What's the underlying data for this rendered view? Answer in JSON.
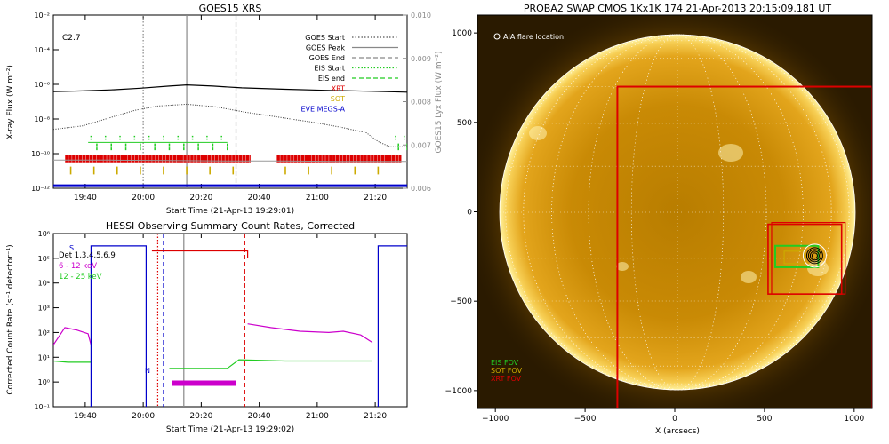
{
  "chart_data": [
    {
      "type": "line",
      "title": "GOES15 XRS",
      "xlabel": "Start Time (21-Apr-13 19:29:01)",
      "ylabel": "X-ray Flux (W m⁻²)",
      "ylabel_right": "GOES15 Lyx Flux (W m⁻²)",
      "flare_class": "C2.7",
      "x_unit": "minutes after 19:29:01",
      "x_range": [
        0,
        122
      ],
      "x_ticks": [
        {
          "t": 11,
          "label": "19:40"
        },
        {
          "t": 31,
          "label": "20:00"
        },
        {
          "t": 51,
          "label": "20:20"
        },
        {
          "t": 71,
          "label": "20:40"
        },
        {
          "t": 91,
          "label": "21:00"
        },
        {
          "t": 111,
          "label": "21:20"
        }
      ],
      "ylim_log": [
        -12,
        -2
      ],
      "y_ticks": [
        "10⁻¹²",
        "10⁻¹⁰",
        "10⁻⁸",
        "10⁻⁶",
        "10⁻⁴",
        "10⁻²"
      ],
      "y2lim": [
        0.006,
        0.01
      ],
      "y2_ticks": [
        "0.006",
        "0.007",
        "0.008",
        "0.009",
        "0.010"
      ],
      "legend": [
        {
          "label": "GOES Start",
          "color": "#555555",
          "style": "dotted"
        },
        {
          "label": "GOES Peak",
          "color": "#888888",
          "style": "solid"
        },
        {
          "label": "GOES End",
          "color": "#888888",
          "style": "dashed"
        },
        {
          "label": "EIS Start",
          "color": "#22cc22",
          "style": "dotted"
        },
        {
          "label": "EIS end",
          "color": "#22cc22",
          "style": "dashed"
        },
        {
          "label": "XRT",
          "color": "#dd0000",
          "style": "text"
        },
        {
          "label": "SOT",
          "color": "#ccaa00",
          "style": "text"
        },
        {
          "label": "EVE MEGS-A",
          "color": "#0000cc",
          "style": "text"
        }
      ],
      "goes_start_t": 31,
      "goes_peak_t": 46,
      "goes_end_t": 63,
      "series": [
        {
          "name": "long",
          "color": "#000000",
          "points": [
            [
              0,
              -6.42
            ],
            [
              10,
              -6.38
            ],
            [
              20,
              -6.32
            ],
            [
              30,
              -6.22
            ],
            [
              40,
              -6.1
            ],
            [
              46,
              -6.03
            ],
            [
              55,
              -6.1
            ],
            [
              65,
              -6.2
            ],
            [
              80,
              -6.28
            ],
            [
              95,
              -6.35
            ],
            [
              110,
              -6.4
            ],
            [
              122,
              -6.45
            ]
          ]
        },
        {
          "name": "short",
          "color": "#333333",
          "points": [
            [
              0,
              -8.6
            ],
            [
              10,
              -8.4
            ],
            [
              20,
              -7.9
            ],
            [
              28,
              -7.5
            ],
            [
              36,
              -7.25
            ],
            [
              46,
              -7.15
            ],
            [
              56,
              -7.3
            ],
            [
              66,
              -7.6
            ],
            [
              78,
              -7.9
            ],
            [
              90,
              -8.2
            ],
            [
              100,
              -8.5
            ],
            [
              108,
              -8.8
            ],
            [
              112,
              -9.3
            ],
            [
              116,
              -9.6
            ],
            [
              122,
              -9.6
            ]
          ]
        },
        {
          "name": "lyman",
          "color": "#999999",
          "points": [
            [
              0,
              0.00665
            ],
            [
              20,
              0.00665
            ],
            [
              40,
              0.00664
            ],
            [
              60,
              0.00663
            ],
            [
              80,
              0.00663
            ],
            [
              100,
              0.00662
            ],
            [
              122,
              0.00662
            ]
          ]
        }
      ],
      "eis_start_ticks": [
        13,
        18,
        23,
        28,
        33,
        38,
        43,
        48,
        53,
        58,
        118,
        121
      ],
      "eis_end_ticks": [
        15,
        20,
        25,
        30,
        35,
        40,
        45,
        50,
        55,
        60,
        119,
        122
      ],
      "xrt_intervals": [
        [
          4,
          68
        ],
        [
          77,
          120
        ]
      ],
      "sot_ticks": [
        6,
        14,
        22,
        30,
        38,
        46,
        54,
        62,
        80,
        88,
        96,
        104,
        112
      ],
      "eve_level_log": -11.85
    },
    {
      "type": "line",
      "title": "HESSI Observing Summary Count Rates, Corrected",
      "xlabel": "Start Time (21-Apr-13 19:29:02)",
      "ylabel": "Corrected Count Rate (s⁻¹ detector⁻¹)",
      "x_unit": "minutes after 19:29:02",
      "x_range": [
        0,
        122
      ],
      "x_ticks": [
        {
          "t": 11,
          "label": "19:40"
        },
        {
          "t": 31,
          "label": "20:00"
        },
        {
          "t": 51,
          "label": "20:20"
        },
        {
          "t": 71,
          "label": "20:40"
        },
        {
          "t": 91,
          "label": "21:00"
        },
        {
          "t": 111,
          "label": "21:20"
        }
      ],
      "ylim_log": [
        -1,
        6
      ],
      "y_ticks": [
        "10⁻¹",
        "10⁰",
        "10¹",
        "10²",
        "10³",
        "10⁴",
        "10⁵",
        "10⁶"
      ],
      "legend": [
        {
          "label": "Det 1,3,4,5,6,9",
          "color": "#000000"
        },
        {
          "label": "6 - 12 keV",
          "color": "#cc00cc"
        },
        {
          "label": "12 - 25 keV",
          "color": "#22cc22"
        }
      ],
      "saa_label": "S",
      "night_label": "N",
      "series": [
        {
          "name": "6 - 12 keV",
          "color": "#cc00cc",
          "points": [
            [
              0,
              1.5
            ],
            [
              4,
              2.2
            ],
            [
              8,
              2.1
            ],
            [
              12,
              1.95
            ],
            [
              13,
              1.5
            ]
          ]
        },
        {
          "name": "6 - 12 keV",
          "color": "#cc00cc",
          "points": [
            [
              41,
              -0.05
            ],
            [
              63,
              -0.05
            ]
          ]
        },
        {
          "name": "6 - 12 keV",
          "color": "#cc00cc",
          "points": [
            [
              67,
              2.35
            ],
            [
              75,
              2.2
            ],
            [
              85,
              2.05
            ],
            [
              95,
              2.0
            ],
            [
              100,
              2.05
            ],
            [
              106,
              1.9
            ],
            [
              110,
              1.6
            ]
          ]
        },
        {
          "name": "12 - 25 keV",
          "color": "#22cc22",
          "points": [
            [
              0,
              0.85
            ],
            [
              5,
              0.8
            ],
            [
              13,
              0.8
            ]
          ]
        },
        {
          "name": "12 - 25 keV",
          "color": "#22cc22",
          "points": [
            [
              40,
              0.55
            ],
            [
              60,
              0.55
            ],
            [
              64,
              0.9
            ],
            [
              80,
              0.85
            ],
            [
              100,
              0.85
            ],
            [
              110,
              0.85
            ]
          ]
        },
        {
          "name": "Det 1,3,4,5,6,9",
          "color": "#0000cc",
          "points": [
            [
              13,
              -1
            ],
            [
              13,
              5.5
            ],
            [
              32,
              5.5
            ],
            [
              32,
              -1
            ]
          ]
        },
        {
          "name": "Det 1,3,4,5,6,9",
          "color": "#0000cc",
          "points": [
            [
              112,
              -1
            ],
            [
              112,
              5.5
            ],
            [
              122,
              5.5
            ]
          ]
        },
        {
          "name": "Det 1,3,4,5,6,9",
          "color": "#dd0000",
          "points": [
            [
              34,
              5.3
            ],
            [
              67,
              5.3
            ],
            [
              67,
              5.0
            ]
          ]
        }
      ],
      "markers": [
        {
          "t": 36,
          "color": "#dd0000",
          "style": "dotted"
        },
        {
          "t": 45,
          "color": "#888888",
          "style": "solid"
        },
        {
          "t": 38,
          "color": "#0000cc",
          "style": "dashed"
        },
        {
          "t": 66,
          "color": "#dd0000",
          "style": "dashed"
        }
      ]
    },
    {
      "type": "image",
      "title": "PROBA2 SWAP CMOS 1Kx1K 174 21-Apr-2013 20:15:09.181 UT",
      "xlabel": "X (arcsecs)",
      "xlim": [
        -1100,
        1100
      ],
      "ylim": [
        -1100,
        1100
      ],
      "x_ticks": [
        -1000,
        -500,
        0,
        500,
        1000
      ],
      "y_ticks": [
        -1000,
        -500,
        0,
        500,
        1000
      ],
      "flare_location_label": "AIA flare location",
      "fov_labels": [
        {
          "label": "EIS FOV",
          "color": "#22cc22"
        },
        {
          "label": "SOT FOV",
          "color": "#ccaa00"
        },
        {
          "label": "XRT FOV",
          "color": "#dd0000"
        }
      ],
      "xrt_fov": [
        -320,
        1100,
        700,
        -1100
      ],
      "xrt_fov_small": [
        520,
        930,
        -70,
        -460
      ],
      "xrt_fov_small2": [
        540,
        950,
        -60,
        -460
      ],
      "eis_fov": [
        560,
        800,
        -190,
        -310
      ],
      "sot_fov": [
        610,
        720,
        -220,
        -290
      ],
      "flare_location": [
        780,
        -245
      ]
    }
  ]
}
